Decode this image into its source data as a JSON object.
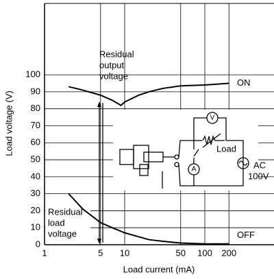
{
  "chart_data": {
    "type": "line",
    "x_label": "Load current (mA)",
    "y_label": "Load voltage (V)",
    "xscale": "log",
    "grid": true,
    "xlim": [
      1,
      730
    ],
    "ylim": [
      0,
      142
    ],
    "xticks": [
      1,
      5,
      10,
      50,
      100,
      200
    ],
    "yticks": [
      0,
      10,
      20,
      30,
      40,
      50,
      60,
      70,
      80,
      90,
      100
    ],
    "series": [
      {
        "name": "ON",
        "color": "#000000",
        "x": [
          2,
          3,
          5,
          7,
          9,
          10,
          15,
          20,
          30,
          50,
          100,
          200
        ],
        "values": [
          93,
          91,
          88,
          85,
          82,
          84,
          88,
          90,
          92,
          93.5,
          94,
          95
        ]
      },
      {
        "name": "OFF",
        "color": "#000000",
        "x": [
          2,
          3,
          5,
          7,
          10,
          20,
          30,
          50,
          100,
          200
        ],
        "values": [
          30,
          21,
          13,
          10,
          7,
          3,
          2,
          1,
          0.5,
          0.5
        ]
      }
    ],
    "annotations": [
      "Residual",
      "output",
      "voltage",
      "Residual",
      "load",
      "voltage",
      "Load",
      "AC",
      "100V",
      "V",
      "A"
    ]
  }
}
